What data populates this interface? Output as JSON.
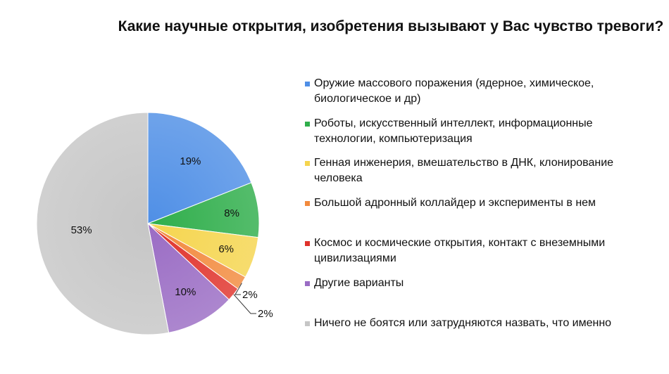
{
  "chart_data": {
    "type": "pie",
    "title": "Какие научные открытия, изобретения вызывают у Вас чувство тревоги?",
    "slices": [
      {
        "label": "Оружие массового поражения (ядерное, химическое, биологическое и др)",
        "value": 19,
        "value_label": "19%",
        "color": "#4f8fe6"
      },
      {
        "label": "Роботы, искусственный интеллект, информационные технологии, компьютеризация",
        "value": 8,
        "value_label": "8%",
        "color": "#2fae4b"
      },
      {
        "label": "Генная инженерия, вмешательство в ДНК, клонирование человека",
        "value": 6,
        "value_label": "6%",
        "color": "#f5d54e"
      },
      {
        "label": "Большой адронный коллайдер и эксперименты в нем",
        "value": 2,
        "value_label": "2%",
        "color": "#f28a3d"
      },
      {
        "label": "Космос и космические открытия, контакт с внеземными цивилизациями",
        "value": 2,
        "value_label": "2%",
        "color": "#e0322b"
      },
      {
        "label": "Другие варианты",
        "value": 10,
        "value_label": "10%",
        "color": "#9a6cc4"
      },
      {
        "label": "Ничего не боятся или затрудняются назвать, что именно",
        "value": 53,
        "value_label": "53%",
        "color": "#c6c6c6"
      }
    ],
    "legend_position": "right"
  }
}
